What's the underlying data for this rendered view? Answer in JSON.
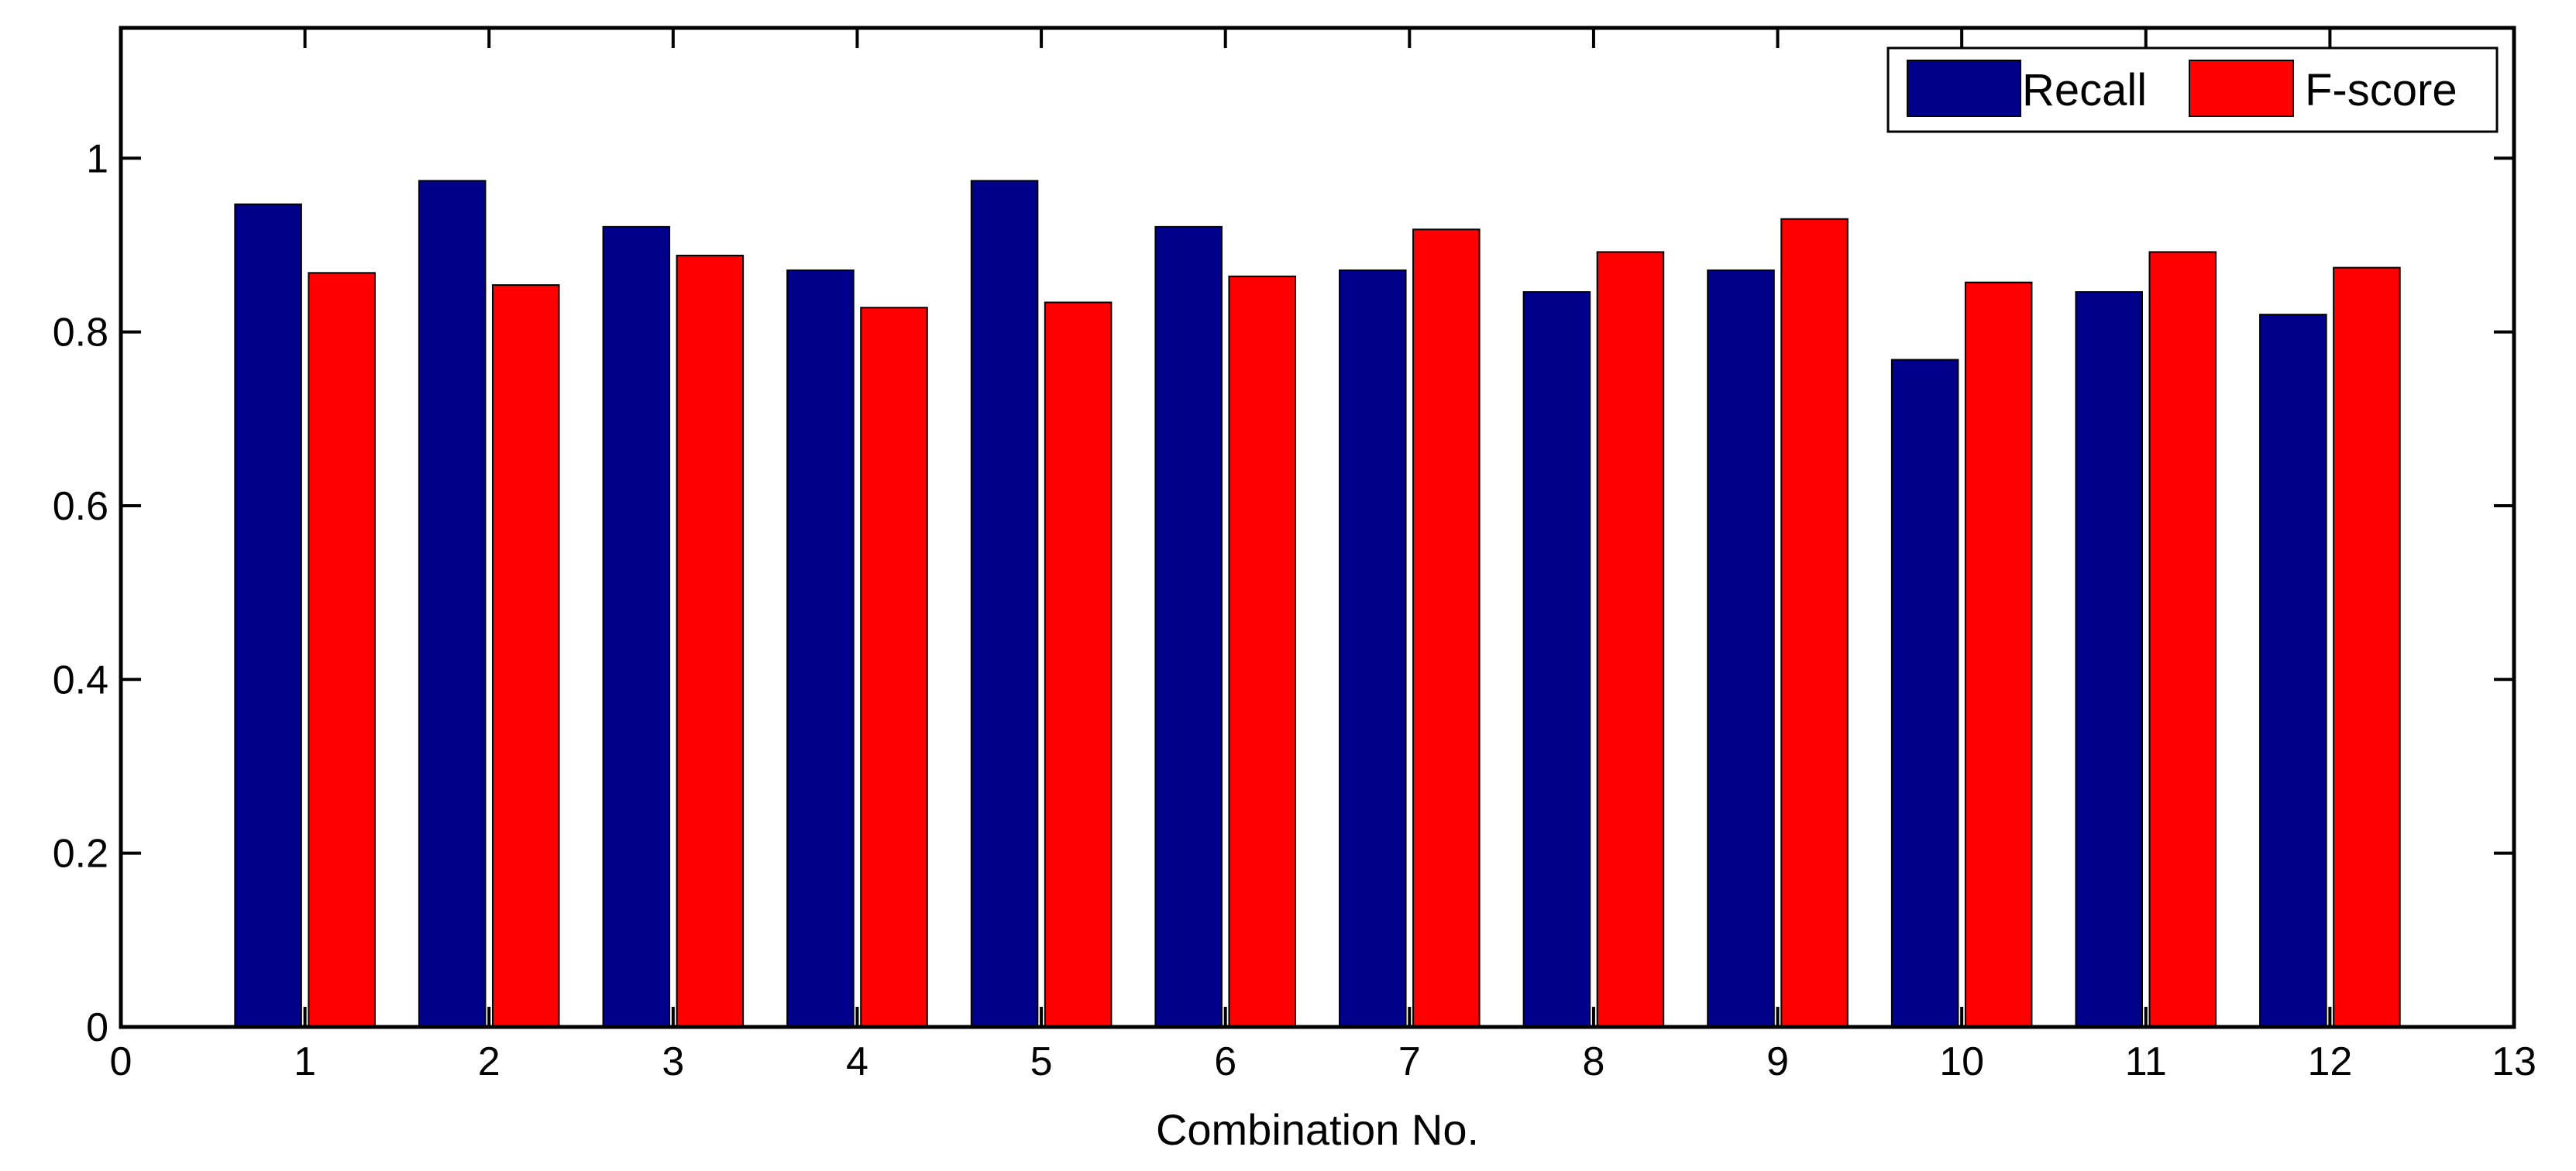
{
  "chart_data": {
    "type": "bar",
    "title": "",
    "xlabel": "Combination No.",
    "ylabel": "",
    "xlim": [
      0,
      13
    ],
    "ylim": [
      0,
      1.15
    ],
    "xticks": [
      "0",
      "1",
      "2",
      "3",
      "4",
      "5",
      "6",
      "7",
      "8",
      "9",
      "10",
      "11",
      "12",
      "13"
    ],
    "yticks": [
      "0",
      "0.2",
      "0.4",
      "0.6",
      "0.8",
      "1"
    ],
    "categories": [
      1,
      2,
      3,
      4,
      5,
      6,
      7,
      8,
      9,
      10,
      11,
      12
    ],
    "series": [
      {
        "name": "Recall",
        "color": "#00008b",
        "values": [
          0.947,
          0.974,
          0.921,
          0.871,
          0.974,
          0.921,
          0.871,
          0.846,
          0.871,
          0.768,
          0.846,
          0.82
        ]
      },
      {
        "name": "F-score",
        "color": "#ff0000",
        "values": [
          0.868,
          0.854,
          0.888,
          0.828,
          0.834,
          0.864,
          0.918,
          0.892,
          0.93,
          0.857,
          0.892,
          0.874
        ]
      }
    ],
    "grid": false,
    "legend": {
      "position": "top-right",
      "entries": [
        "Recall",
        "F-score"
      ]
    }
  }
}
